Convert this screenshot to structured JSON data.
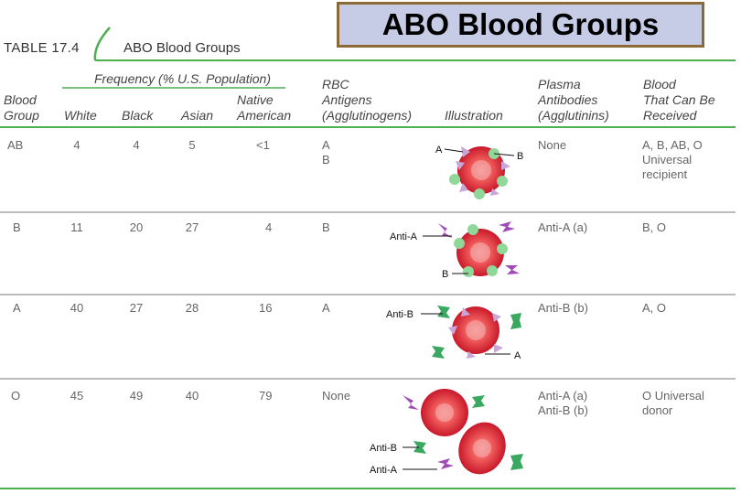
{
  "banner": {
    "title": "ABO Blood Groups"
  },
  "table": {
    "label": "TABLE 17.4",
    "name": "ABO Blood Groups",
    "frequency_header": "Frequency (% U.S. Population)",
    "headers": {
      "blood_group": [
        "Blood",
        "Group"
      ],
      "white": "White",
      "black": "Black",
      "asian": "Asian",
      "native_american": [
        "Native",
        "American"
      ],
      "rbc_antigens": [
        "RBC",
        "Antigens",
        "(Agglutinogens)"
      ],
      "illustration": "Illustration",
      "plasma_antibodies": [
        "Plasma",
        "Antibodies",
        "(Agglutinins)"
      ],
      "received": [
        "Blood",
        "That Can Be",
        "Received"
      ]
    },
    "rows": [
      {
        "group": "AB",
        "white": "4",
        "black": "4",
        "asian": "5",
        "native": "<1",
        "antigens": [
          "A",
          "B"
        ],
        "antibodies": [
          "None"
        ],
        "received": [
          "A, B, AB, O",
          "Universal",
          "recipient"
        ],
        "illus_labels": [
          "A",
          "B"
        ]
      },
      {
        "group": "B",
        "white": "11",
        "black": "20",
        "asian": "27",
        "native": "4",
        "antigens": [
          "B"
        ],
        "antibodies": [
          "Anti-A (a)"
        ],
        "received": [
          "B, O"
        ],
        "illus_labels": [
          "Anti-A",
          "B"
        ]
      },
      {
        "group": "A",
        "white": "40",
        "black": "27",
        "asian": "28",
        "native": "16",
        "antigens": [
          "A"
        ],
        "antibodies": [
          "Anti-B (b)"
        ],
        "received": [
          "A, O"
        ],
        "illus_labels": [
          "Anti-B",
          "A"
        ]
      },
      {
        "group": "O",
        "white": "45",
        "black": "49",
        "asian": "40",
        "native": "79",
        "antigens": [
          "None"
        ],
        "antibodies": [
          "Anti-A (a)",
          "Anti-B (b)"
        ],
        "received": [
          "O Universal",
          "donor"
        ],
        "illus_labels": [
          "Anti-B",
          "Anti-A"
        ]
      }
    ]
  },
  "colors": {
    "rule": "#4caf50",
    "cell": "#e0303a",
    "antigen_b": "#8fd89a",
    "antigen_a": "#c8a6d8",
    "anti_a": "#a04ab8",
    "anti_b": "#3aa860"
  }
}
